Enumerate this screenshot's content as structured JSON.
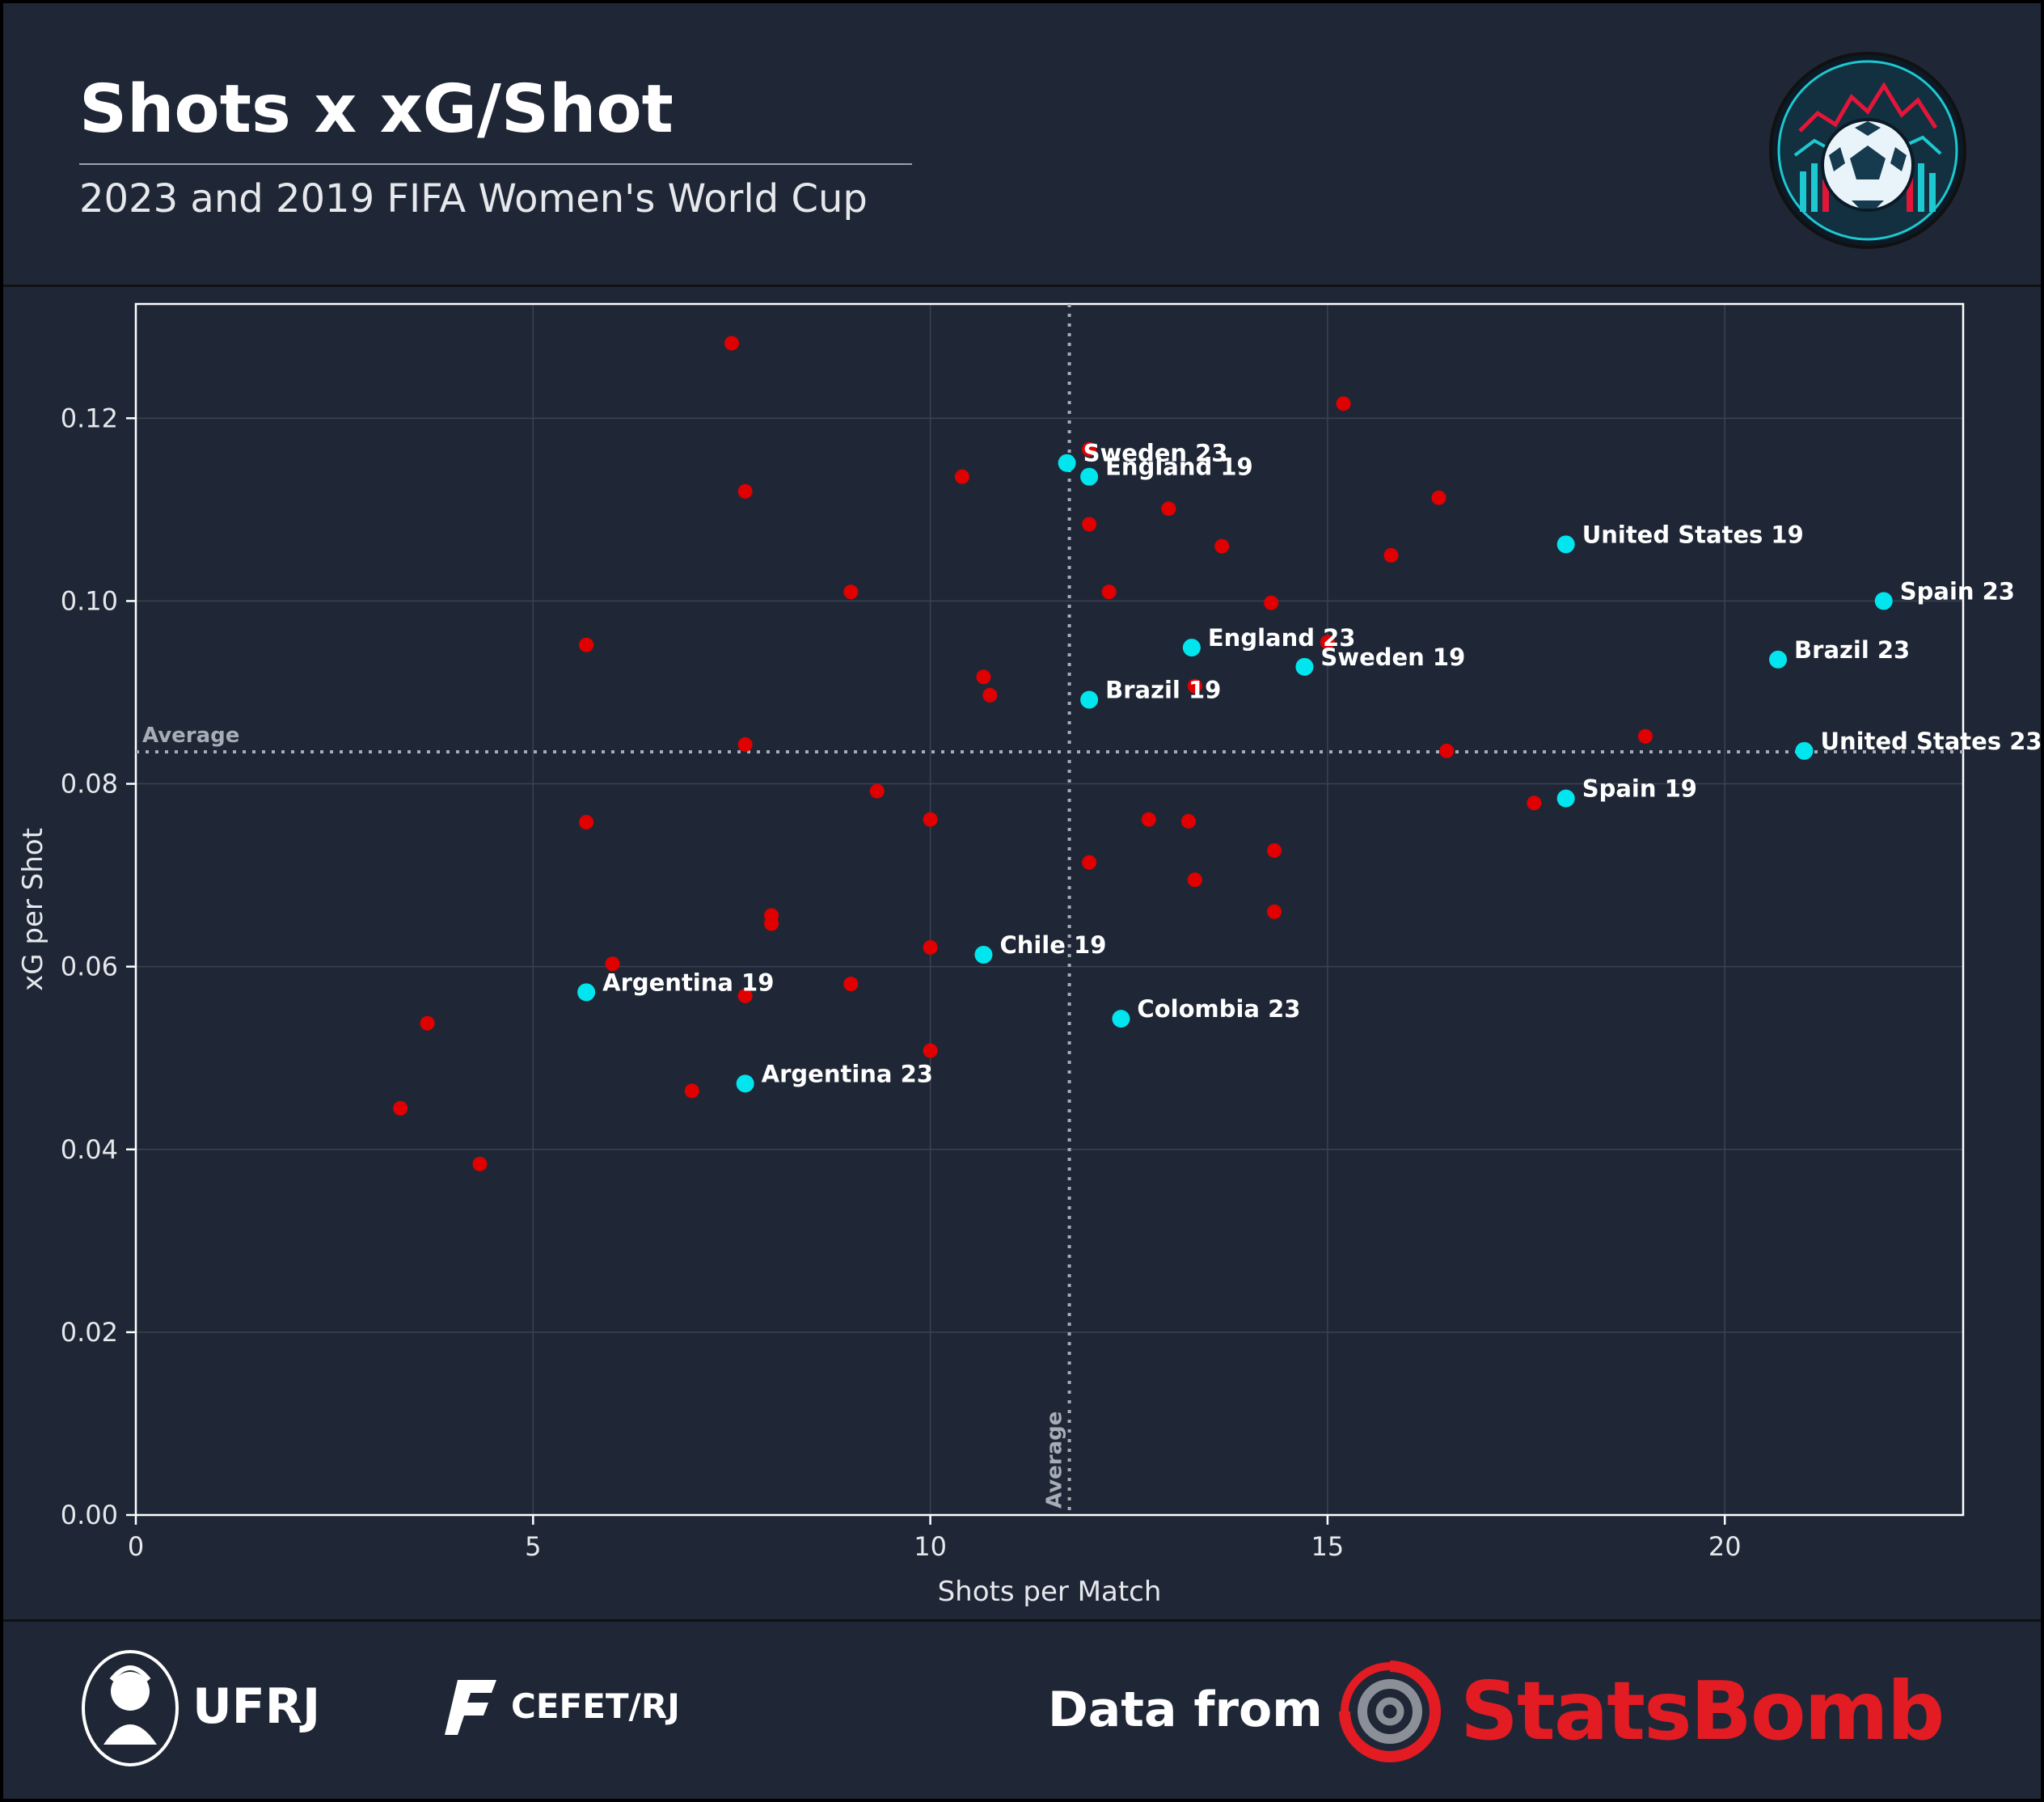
{
  "header": {
    "title": "Shots x xG/Shot",
    "subtitle": "2023 and 2019 FIFA Women's World Cup"
  },
  "footer": {
    "ufrj": "UFRJ",
    "cefet": "CEFET/RJ",
    "data_from": "Data from",
    "statsbomb": "StatsBomb"
  },
  "colors": {
    "background": "#1f2736",
    "highlight": "#00e5ee",
    "other": "#e00000",
    "brand_red": "#e31b23"
  },
  "chart_data": {
    "type": "scatter",
    "xlabel": "Shots per Match",
    "ylabel": "xG per Shot",
    "xlim": [
      0,
      23
    ],
    "ylim": [
      0,
      0.1325
    ],
    "xticks": [
      0,
      5,
      10,
      15,
      20
    ],
    "xtick_labels": [
      "0",
      "5",
      "10",
      "15",
      "20"
    ],
    "yticks": [
      0.0,
      0.02,
      0.04,
      0.06,
      0.08,
      0.1,
      0.12
    ],
    "ytick_labels": [
      "0.00",
      "0.02",
      "0.04",
      "0.06",
      "0.08",
      "0.10",
      "0.12"
    ],
    "grid": true,
    "average_lines": {
      "label": "Average",
      "x": 11.75,
      "y": 0.0835
    },
    "highlighted": [
      {
        "label": "Sweden 23",
        "x": 11.72,
        "y": 0.1151
      },
      {
        "label": "England 19",
        "x": 12.0,
        "y": 0.1136
      },
      {
        "label": "United States 19",
        "x": 18.0,
        "y": 0.1062
      },
      {
        "label": "Spain 23",
        "x": 22.0,
        "y": 0.1
      },
      {
        "label": "England 23",
        "x": 13.29,
        "y": 0.0949
      },
      {
        "label": "Sweden 19",
        "x": 14.71,
        "y": 0.0928
      },
      {
        "label": "Brazil 23",
        "x": 20.67,
        "y": 0.0936
      },
      {
        "label": "Brazil 19",
        "x": 12.0,
        "y": 0.0892
      },
      {
        "label": "United States 23",
        "x": 21.0,
        "y": 0.0836
      },
      {
        "label": "Spain 19",
        "x": 18.0,
        "y": 0.0784
      },
      {
        "label": "Chile 19",
        "x": 10.67,
        "y": 0.0613
      },
      {
        "label": "Argentina 19",
        "x": 5.67,
        "y": 0.0572
      },
      {
        "label": "Colombia 23",
        "x": 12.4,
        "y": 0.0543
      },
      {
        "label": "Argentina 23",
        "x": 7.67,
        "y": 0.0472
      }
    ],
    "others": [
      [
        7.5,
        0.1282
      ],
      [
        7.67,
        0.112
      ],
      [
        10.4,
        0.1136
      ],
      [
        12.0,
        0.1166
      ],
      [
        15.2,
        0.1216
      ],
      [
        12.0,
        0.1084
      ],
      [
        13.0,
        0.1101
      ],
      [
        13.67,
        0.106
      ],
      [
        15.8,
        0.105
      ],
      [
        16.4,
        0.1113
      ],
      [
        9.0,
        0.101
      ],
      [
        12.25,
        0.101
      ],
      [
        14.29,
        0.0998
      ],
      [
        5.67,
        0.0952
      ],
      [
        10.67,
        0.0917
      ],
      [
        10.75,
        0.0897
      ],
      [
        13.33,
        0.0907
      ],
      [
        15.0,
        0.0955
      ],
      [
        7.67,
        0.0843
      ],
      [
        16.5,
        0.0836
      ],
      [
        19.0,
        0.0852
      ],
      [
        17.6,
        0.0779
      ],
      [
        9.33,
        0.0792
      ],
      [
        5.67,
        0.0758
      ],
      [
        10.0,
        0.0761
      ],
      [
        12.75,
        0.0761
      ],
      [
        13.25,
        0.0759
      ],
      [
        14.33,
        0.0727
      ],
      [
        12.0,
        0.0714
      ],
      [
        13.33,
        0.0695
      ],
      [
        14.33,
        0.066
      ],
      [
        8.0,
        0.0656
      ],
      [
        8.0,
        0.0647
      ],
      [
        10.0,
        0.0621
      ],
      [
        6.0,
        0.0603
      ],
      [
        9.0,
        0.0581
      ],
      [
        7.67,
        0.0568
      ],
      [
        3.67,
        0.0538
      ],
      [
        10.0,
        0.0508
      ],
      [
        7.0,
        0.0464
      ],
      [
        3.33,
        0.0445
      ],
      [
        4.33,
        0.0384
      ]
    ]
  }
}
